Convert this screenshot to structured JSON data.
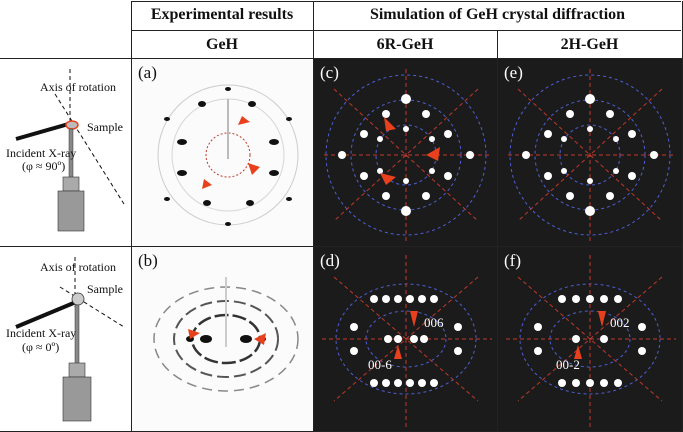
{
  "headers": {
    "experimental": "Experimental results",
    "simulation": "Simulation of GeH crystal diffraction",
    "geh": "GeH",
    "r6": "6R-GeH",
    "h2": "2H-GeH"
  },
  "rows": [
    {
      "axis_label": "Axis of rotation",
      "sample_label": "Sample",
      "incident_label": "Incident X-ray",
      "angle_label": "(φ ≈ 90º)"
    },
    {
      "axis_label": "Axis of rotation",
      "sample_label": "Sample",
      "incident_label": "Incident X-ray",
      "angle_label": "(φ ≈ 0º)"
    }
  ],
  "panels": {
    "a": "(a)",
    "b": "(b)",
    "c": "(c)",
    "d": "(d)",
    "e": "(e)",
    "f": "(f)"
  },
  "indices": {
    "d_top": "006",
    "d_bottom": "00-6",
    "f_top": "002",
    "f_bottom": "00-2"
  },
  "colors": {
    "arrow": "#e8401c",
    "sim_bg": "#1b1b1b",
    "sim_spot": "#ffffff",
    "ring_blue": "#4d5fd6",
    "ring_red": "#c0392b"
  }
}
